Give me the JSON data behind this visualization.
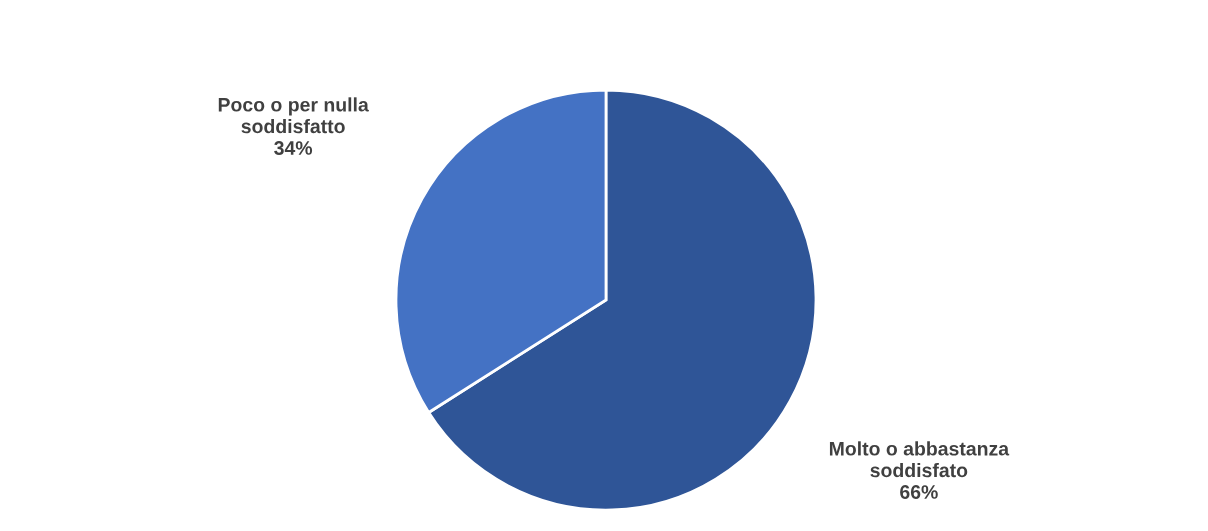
{
  "chart_data": {
    "type": "pie",
    "categories": [
      "Molto o abbastanza\nsoddisfato",
      "Poco o per nulla\nsoddisfatto"
    ],
    "values": [
      66,
      34
    ],
    "value_labels": [
      "66%",
      "34%"
    ],
    "colors": [
      "#2f5597",
      "#4472c4"
    ],
    "legend": false
  }
}
